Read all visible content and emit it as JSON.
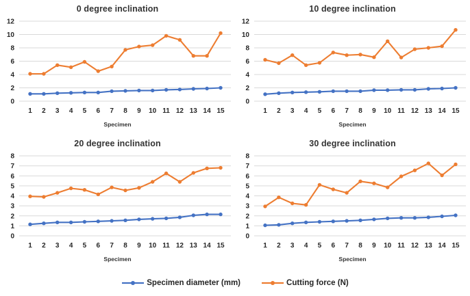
{
  "chart_data": [
    {
      "type": "line",
      "title": "0 degree inclination",
      "xlabel": "Specimen",
      "categories": [
        "1",
        "2",
        "3",
        "4",
        "5",
        "6",
        "7",
        "8",
        "9",
        "10",
        "11",
        "12",
        "13",
        "14",
        "15"
      ],
      "ylim": [
        0,
        12
      ],
      "ytick_step": 2,
      "grid": "horizontal",
      "series": [
        {
          "name": "Specimen diameter (mm)",
          "color": "#4472C4",
          "values": [
            1.1,
            1.1,
            1.2,
            1.25,
            1.3,
            1.3,
            1.5,
            1.55,
            1.6,
            1.6,
            1.7,
            1.75,
            1.85,
            1.9,
            2.0
          ]
        },
        {
          "name": "Cutting force (N)",
          "color": "#ED7D31",
          "values": [
            4.1,
            4.1,
            5.4,
            5.1,
            5.9,
            4.5,
            5.2,
            7.7,
            8.2,
            8.4,
            9.8,
            9.2,
            6.8,
            6.8,
            10.2
          ]
        }
      ]
    },
    {
      "type": "line",
      "title": "10 degree inclination",
      "xlabel": "Specimen",
      "categories": [
        "1",
        "2",
        "3",
        "4",
        "5",
        "6",
        "7",
        "8",
        "9",
        "10",
        "11",
        "12",
        "13",
        "14",
        "15"
      ],
      "ylim": [
        0,
        12
      ],
      "ytick_step": 2,
      "grid": "horizontal",
      "series": [
        {
          "name": "Specimen diameter (mm)",
          "color": "#4472C4",
          "values": [
            1.05,
            1.2,
            1.3,
            1.35,
            1.4,
            1.5,
            1.5,
            1.5,
            1.65,
            1.65,
            1.7,
            1.7,
            1.85,
            1.9,
            2.0
          ]
        },
        {
          "name": "Cutting force (N)",
          "color": "#ED7D31",
          "values": [
            6.2,
            5.7,
            6.9,
            5.4,
            5.75,
            7.3,
            6.9,
            7.0,
            6.6,
            9.0,
            6.55,
            7.8,
            8.0,
            8.25,
            10.7
          ]
        }
      ]
    },
    {
      "type": "line",
      "title": "20 degree inclination",
      "xlabel": "Specimen",
      "categories": [
        "1",
        "2",
        "3",
        "4",
        "5",
        "6",
        "7",
        "8",
        "9",
        "10",
        "11",
        "12",
        "13",
        "14",
        "15"
      ],
      "ylim": [
        0,
        8
      ],
      "ytick_step": 1,
      "grid": "horizontal",
      "series": [
        {
          "name": "Specimen diameter (mm)",
          "color": "#4472C4",
          "values": [
            1.15,
            1.25,
            1.35,
            1.35,
            1.4,
            1.45,
            1.5,
            1.55,
            1.65,
            1.7,
            1.75,
            1.85,
            2.05,
            2.15,
            2.15
          ]
        },
        {
          "name": "Cutting force (N)",
          "color": "#ED7D31",
          "values": [
            3.95,
            3.9,
            4.3,
            4.75,
            4.6,
            4.15,
            4.85,
            4.55,
            4.8,
            5.4,
            6.25,
            5.4,
            6.3,
            6.75,
            6.8
          ]
        }
      ]
    },
    {
      "type": "line",
      "title": "30 degree inclination",
      "xlabel": "Specimen",
      "categories": [
        "1",
        "2",
        "3",
        "4",
        "5",
        "6",
        "7",
        "8",
        "9",
        "10",
        "11",
        "12",
        "13",
        "14",
        "15"
      ],
      "ylim": [
        0,
        8
      ],
      "ytick_step": 1,
      "grid": "horizontal",
      "series": [
        {
          "name": "Specimen diameter (mm)",
          "color": "#4472C4",
          "values": [
            1.05,
            1.1,
            1.25,
            1.35,
            1.4,
            1.45,
            1.5,
            1.55,
            1.65,
            1.75,
            1.8,
            1.8,
            1.85,
            1.95,
            2.05
          ]
        },
        {
          "name": "Cutting force (N)",
          "color": "#ED7D31",
          "values": [
            2.95,
            3.85,
            3.25,
            3.1,
            5.1,
            4.65,
            4.3,
            5.45,
            5.25,
            4.85,
            5.95,
            6.55,
            7.25,
            6.05,
            7.15
          ]
        }
      ]
    }
  ],
  "legend": {
    "position": "bottom",
    "items": [
      {
        "label": "Specimen diameter (mm)",
        "color": "#4472C4"
      },
      {
        "label": "Cutting force (N)",
        "color": "#ED7D31"
      }
    ]
  },
  "style": {
    "gridline_color": "#D9D9D9",
    "tick_label_color": "#262626",
    "title_color": "#333333"
  }
}
